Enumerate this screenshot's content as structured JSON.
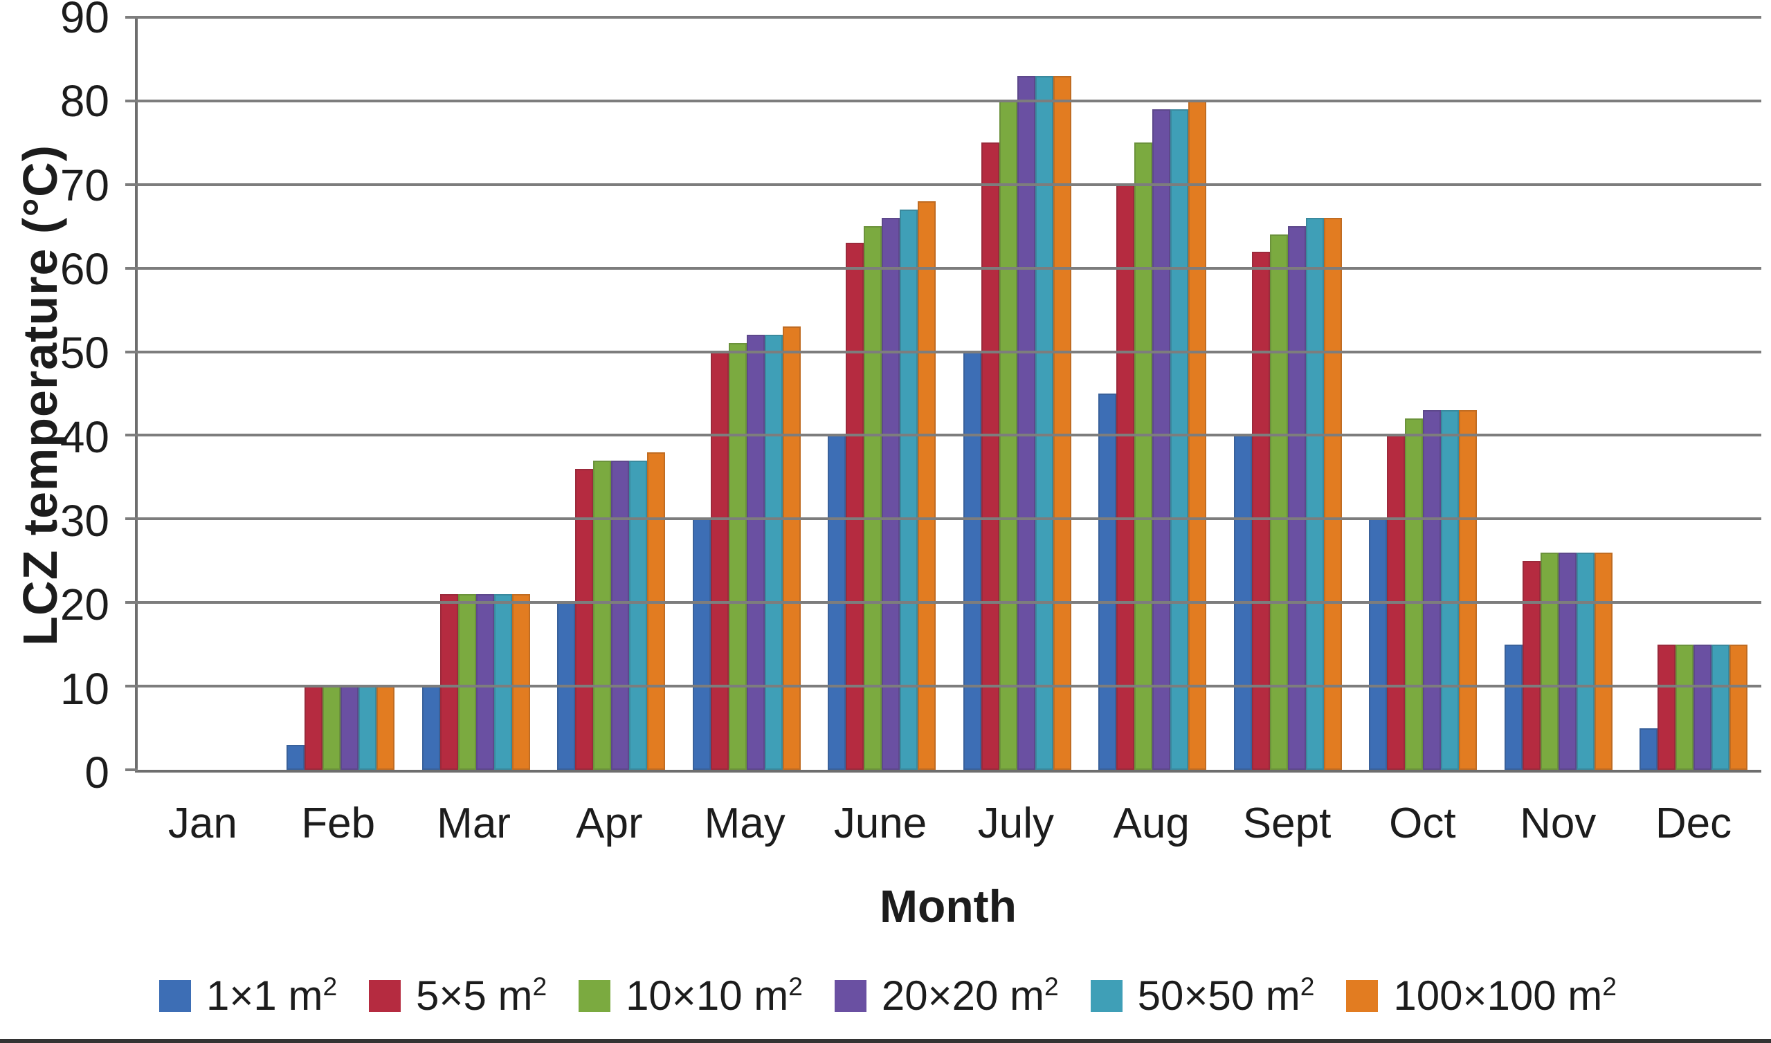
{
  "figure": {
    "background": "#ffffff",
    "y_axis": {
      "title": "LCZ temperature (°C)"
    },
    "x_axis": {
      "title": "Month"
    }
  },
  "colors": {
    "gridline": "#7d7d7d",
    "axis": "#6e6e6e",
    "text": "#1c1c1c"
  },
  "chart_data": {
    "type": "bar",
    "title": "",
    "xlabel": "Month",
    "ylabel": "LCZ temperature (°C)",
    "ylim": [
      0,
      90
    ],
    "ytick_step": 10,
    "grid": true,
    "legend_position": "bottom",
    "categories": [
      "Jan",
      "Feb",
      "Mar",
      "Apr",
      "May",
      "June",
      "July",
      "Aug",
      "Sept",
      "Oct",
      "Nov",
      "Dec"
    ],
    "series": [
      {
        "name": "1×1 m²",
        "color": "#3D6EB5",
        "values": [
          0,
          3,
          10,
          20,
          30,
          40,
          50,
          45,
          40,
          30,
          15,
          5
        ]
      },
      {
        "name": "5×5 m²",
        "color": "#B52B40",
        "values": [
          0,
          10,
          21,
          36,
          50,
          63,
          75,
          70,
          62,
          40,
          25,
          15
        ]
      },
      {
        "name": "10×10 m²",
        "color": "#7BAA40",
        "values": [
          0,
          10,
          21,
          37,
          51,
          65,
          80,
          75,
          64,
          42,
          26,
          15
        ]
      },
      {
        "name": "20×20 m²",
        "color": "#6A50A2",
        "values": [
          0,
          10,
          21,
          37,
          52,
          66,
          83,
          79,
          65,
          43,
          26,
          15
        ]
      },
      {
        "name": "50×50 m²",
        "color": "#3F9FB7",
        "values": [
          0,
          10,
          21,
          37,
          52,
          67,
          83,
          79,
          66,
          43,
          26,
          15
        ]
      },
      {
        "name": "100×100 m²",
        "color": "#E27C21",
        "values": [
          0,
          10,
          21,
          38,
          53,
          68,
          83,
          80,
          66,
          43,
          26,
          15
        ]
      }
    ]
  }
}
